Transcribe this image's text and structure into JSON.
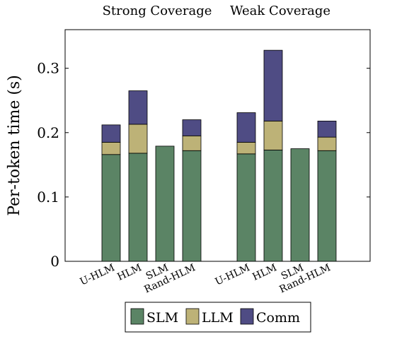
{
  "chart_data": {
    "type": "bar",
    "stacked": true,
    "ylabel": "Per-token time (s)",
    "ylim": [
      0,
      0.36
    ],
    "yticks": [
      0,
      0.1,
      0.2,
      0.3
    ],
    "ytick_labels": [
      "0",
      "0.1",
      "0.2",
      "0.3"
    ],
    "grid": false,
    "legend_position": "bottom",
    "groups": [
      {
        "title": "Strong Coverage",
        "categories": [
          "U-HLM",
          "HLM",
          "SLM",
          "Rand-HLM"
        ],
        "series": [
          {
            "name": "SLM",
            "values": [
              0.166,
              0.168,
              0.179,
              0.172
            ]
          },
          {
            "name": "LLM",
            "values": [
              0.019,
              0.045,
              0.0,
              0.023
            ]
          },
          {
            "name": "Comm",
            "values": [
              0.027,
              0.052,
              0.0,
              0.025
            ]
          }
        ]
      },
      {
        "title": "Weak Coverage",
        "categories": [
          "U-HLM",
          "HLM",
          "SLM",
          "Rand-HLM"
        ],
        "series": [
          {
            "name": "SLM",
            "values": [
              0.167,
              0.173,
              0.175,
              0.172
            ]
          },
          {
            "name": "LLM",
            "values": [
              0.018,
              0.045,
              0.0,
              0.021
            ]
          },
          {
            "name": "Comm",
            "values": [
              0.046,
              0.11,
              0.0,
              0.025
            ]
          }
        ]
      }
    ],
    "colors": {
      "SLM": "#5b8465",
      "LLM": "#bdb277",
      "Comm": "#4f4c84"
    },
    "legend": [
      "SLM",
      "LLM",
      "Comm"
    ]
  }
}
